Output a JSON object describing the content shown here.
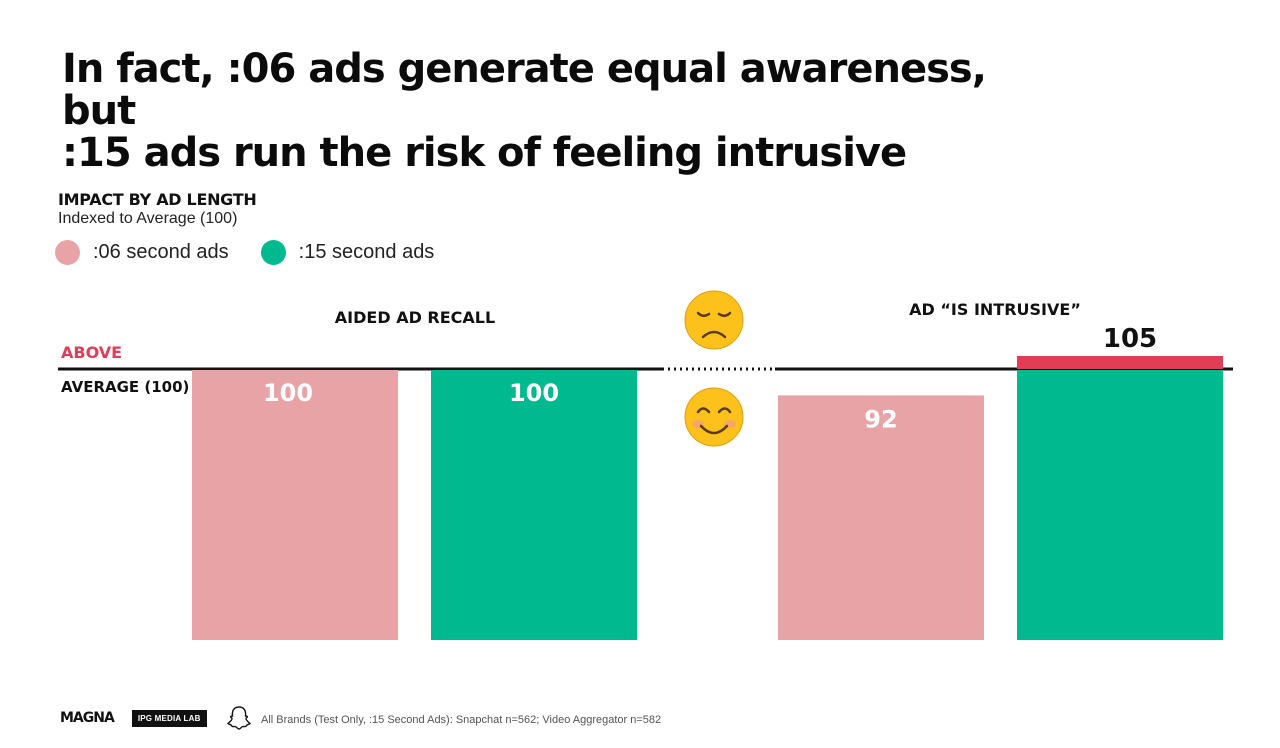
{
  "title": {
    "line1": "In fact, :06 ads generate equal awareness, but",
    "line2": ":15 ads run the risk of feeling intrusive"
  },
  "subtitle": {
    "heading": "IMPACT BY AD LENGTH",
    "note": "Indexed to Average (100)"
  },
  "legend": [
    {
      "label": ":06 second ads",
      "color": "#e8a3a7"
    },
    {
      "label": ":15 second ads",
      "color": "#00b98e"
    }
  ],
  "reference": {
    "above_label": "ABOVE",
    "average_label": "AVERAGE (100)",
    "above_color": "#e23d57",
    "baseline": 100
  },
  "footer": {
    "logo1": "MAGNA",
    "logo2": "IPG MEDIA LAB",
    "footnote": "All Brands (Test Only, :15 Second Ads): Snapchat n=562; Video Aggregator n=582"
  },
  "chart_data": {
    "type": "bar",
    "groups": [
      "AIDED AD RECALL",
      "AD “IS INTRUSIVE”"
    ],
    "series": [
      {
        "name": ":06 second ads",
        "color": "#e8a3a7",
        "values": [
          100,
          92
        ]
      },
      {
        "name": ":15 second ads",
        "color": "#00b98e",
        "values": [
          100,
          105
        ]
      }
    ],
    "value_labels": [
      "100",
      "100",
      "92",
      "105"
    ],
    "reference_line": 100,
    "group_icons": [
      "frowning-face",
      "smiling-face"
    ],
    "xlabel": "",
    "ylabel": ""
  }
}
